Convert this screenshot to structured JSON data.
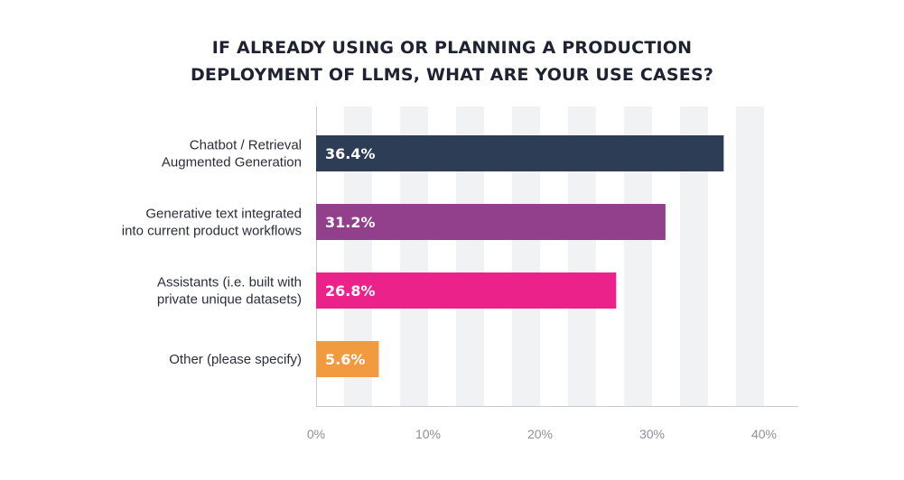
{
  "chart_data": {
    "type": "bar",
    "orientation": "horizontal",
    "title_lines": [
      "IF ALREADY USING OR PLANNING A PRODUCTION",
      "DEPLOYMENT OF LLMS, WHAT ARE YOUR USE CASES?"
    ],
    "categories": [
      [
        "Chatbot / Retrieval",
        "Augmented Generation"
      ],
      [
        "Generative text integrated",
        "into current product workflows"
      ],
      [
        "Assistants (i.e. built with",
        "private unique datasets)"
      ],
      [
        "Other (please specify)"
      ]
    ],
    "values": [
      36.4,
      31.2,
      26.8,
      5.6
    ],
    "value_labels": [
      "36.4%",
      "31.2%",
      "26.8%",
      "5.6%"
    ],
    "bar_colors": [
      "#2e3d56",
      "#92408c",
      "#ea2289",
      "#f29a40"
    ],
    "x_ticks": [
      0,
      10,
      20,
      30,
      40
    ],
    "x_tick_labels": [
      "0%",
      "10%",
      "20%",
      "30%",
      "40%"
    ],
    "xlim": [
      0,
      43
    ],
    "grid": "alternating vertical bands",
    "band_color": "#f1f2f4",
    "axis_color": "#c9cbd0",
    "label_color": "#2b2d3a",
    "tick_label_color": "#8e9097"
  }
}
